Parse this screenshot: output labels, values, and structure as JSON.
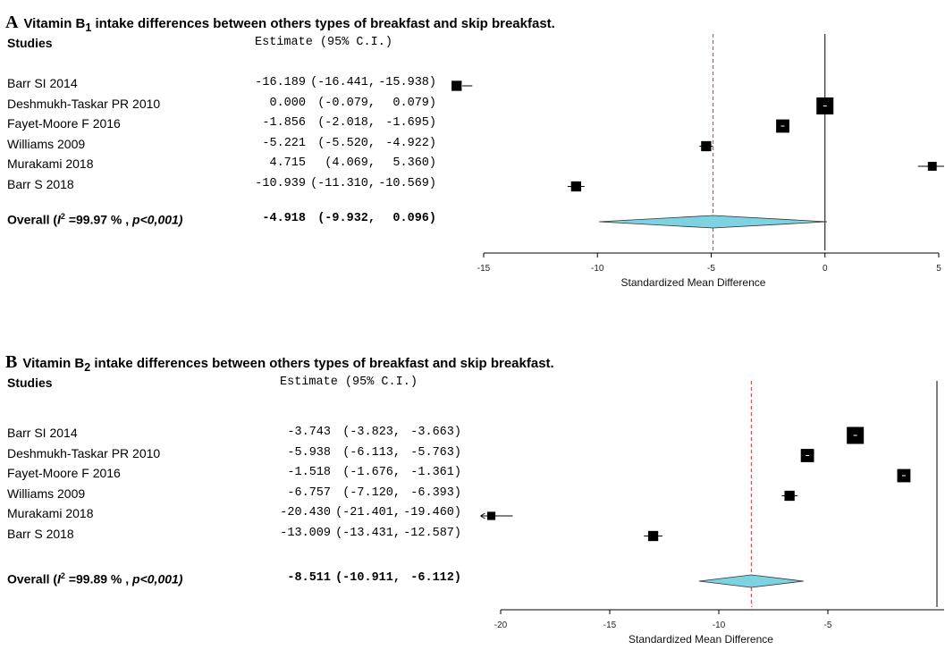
{
  "chart_data": [
    {
      "type": "forest",
      "panel_letter": "A",
      "title_prefix": "Vitamin B",
      "title_subscript": "1",
      "title_suffix": " intake differences between others types of breakfast and skip breakfast.",
      "header_studies": "Studies",
      "header_estimate": "Estimate (95% C.I.)",
      "xlabel": "Standardized Mean Difference",
      "xlim": [
        -15,
        5
      ],
      "xticks": [
        -15,
        -10,
        -5,
        0,
        5
      ],
      "xtick_labels": [
        "-15",
        "-10",
        "-5",
        "0",
        "5"
      ],
      "null_line": 0,
      "pooled_line": -4.918,
      "studies": [
        {
          "name": "Barr SI 2014",
          "estimate": -16.189,
          "lower": -16.441,
          "upper": -15.938,
          "est_text": "-16.189",
          "lower_text": "(-16.441,",
          "upper_text": "-15.938)",
          "weight": 0.45,
          "arrow_left": false,
          "arrow_right": false
        },
        {
          "name": "Deshmukh-Taskar PR 2010",
          "estimate": 0.0,
          "lower": -0.079,
          "upper": 0.079,
          "est_text": "0.000",
          "lower_text": "(-0.079,",
          "upper_text": "0.079)",
          "weight": 1.0,
          "arrow_left": false,
          "arrow_right": false
        },
        {
          "name": "Fayet-Moore F 2016",
          "estimate": -1.856,
          "lower": -2.018,
          "upper": -1.695,
          "est_text": "-1.856",
          "lower_text": "(-2.018,",
          "upper_text": "-1.695)",
          "weight": 0.7,
          "arrow_left": false,
          "arrow_right": false
        },
        {
          "name": "Williams 2009",
          "estimate": -5.221,
          "lower": -5.52,
          "upper": -4.922,
          "est_text": "-5.221",
          "lower_text": "(-5.520,",
          "upper_text": "-4.922)",
          "weight": 0.45,
          "arrow_left": false,
          "arrow_right": false
        },
        {
          "name": "Murakami 2018",
          "estimate": 4.715,
          "lower": 4.069,
          "upper": 5.36,
          "est_text": "4.715",
          "lower_text": "(4.069,",
          "upper_text": "5.360)",
          "weight": 0.35,
          "arrow_left": false,
          "arrow_right": true
        },
        {
          "name": "Barr S 2018",
          "estimate": -10.939,
          "lower": -11.31,
          "upper": -10.569,
          "est_text": "-10.939",
          "lower_text": "(-11.310,",
          "upper_text": "-10.569)",
          "weight": 0.45,
          "arrow_left": false,
          "arrow_right": false
        }
      ],
      "overall": {
        "label_prefix": "Overall (",
        "label_i": "I",
        "label_sup": "2",
        "label_mid": " =99.97 % , ",
        "label_p": "p<0,001)",
        "estimate": -4.918,
        "lower": -9.932,
        "upper": 0.096,
        "est_text": "-4.918",
        "lower_text": "(-9.932,",
        "upper_text": "0.096)"
      },
      "diamond_color": "#7ED3E3",
      "pooled_line_color": "#E03030"
    },
    {
      "type": "forest",
      "panel_letter": "B",
      "title_prefix": "Vitamin B",
      "title_subscript": "2",
      "title_suffix": " intake differences between others types of breakfast and skip breakfast.",
      "header_studies": "Studies",
      "header_estimate": "Estimate (95% C.I.)",
      "xlabel": "Standardized Mean Difference",
      "xlim": [
        -20,
        0
      ],
      "xticks": [
        -20,
        -15,
        -10,
        -5
      ],
      "xtick_labels": [
        "-20",
        "-15",
        "-10",
        "-5"
      ],
      "null_line": 0,
      "pooled_line": -8.511,
      "studies": [
        {
          "name": "Barr SI 2014",
          "estimate": -3.743,
          "lower": -3.823,
          "upper": -3.663,
          "est_text": "-3.743",
          "lower_text": "(-3.823,",
          "upper_text": "-3.663)",
          "weight": 1.0,
          "arrow_left": false,
          "arrow_right": false
        },
        {
          "name": "Deshmukh-Taskar PR 2010",
          "estimate": -5.938,
          "lower": -6.113,
          "upper": -5.763,
          "est_text": "-5.938",
          "lower_text": "(-6.113,",
          "upper_text": "-5.763)",
          "weight": 0.7,
          "arrow_left": false,
          "arrow_right": false
        },
        {
          "name": "Fayet-Moore F 2016",
          "estimate": -1.518,
          "lower": -1.676,
          "upper": -1.361,
          "est_text": "-1.518",
          "lower_text": "(-1.676,",
          "upper_text": "-1.361)",
          "weight": 0.7,
          "arrow_left": false,
          "arrow_right": false
        },
        {
          "name": "Williams 2009",
          "estimate": -6.757,
          "lower": -7.12,
          "upper": -6.393,
          "est_text": "-6.757",
          "lower_text": "(-7.120,",
          "upper_text": "-6.393)",
          "weight": 0.45,
          "arrow_left": false,
          "arrow_right": false
        },
        {
          "name": "Murakami 2018",
          "estimate": -20.43,
          "lower": -21.401,
          "upper": -19.46,
          "est_text": "-20.430",
          "lower_text": "(-21.401,",
          "upper_text": "-19.460)",
          "weight": 0.3,
          "arrow_left": true,
          "arrow_right": false
        },
        {
          "name": "Barr S 2018",
          "estimate": -13.009,
          "lower": -13.431,
          "upper": -12.587,
          "est_text": "-13.009",
          "lower_text": "(-13.431,",
          "upper_text": "-12.587)",
          "weight": 0.45,
          "arrow_left": false,
          "arrow_right": false
        }
      ],
      "overall": {
        "label_prefix": "Overall (",
        "label_i": "I",
        "label_sup": "2",
        "label_mid": " =99.89 % , ",
        "label_p": "p<0,001)",
        "estimate": -8.511,
        "lower": -10.911,
        "upper": -6.112,
        "est_text": "-8.511",
        "lower_text": "(-10.911,",
        "upper_text": "-6.112)"
      },
      "diamond_color": "#7ED3E3",
      "pooled_line_color": "#E03030"
    }
  ]
}
